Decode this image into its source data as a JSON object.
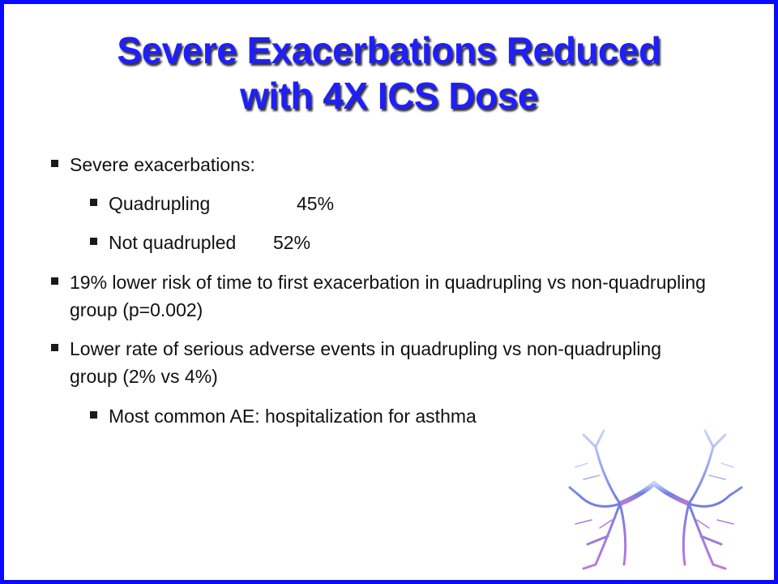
{
  "header": {
    "title_lines": [
      "Severe Exacerbations Reduced",
      "with 4X ICS Dose"
    ]
  },
  "bullets": [
    {
      "text": "Severe exacerbations:",
      "sub": [
        {
          "label": "Quadrupling",
          "value": "45%"
        },
        {
          "label": "Not quadrupled",
          "value": "52%"
        }
      ]
    },
    {
      "text": "19% lower risk of time to first exacerbation in quadrupling vs non-quadrupling group (p=0.002)"
    },
    {
      "text": "Lower rate of serious adverse events in quadrupling vs non-quadrupling group (2% vs 4%)",
      "sub": [
        {
          "label": "Most common AE: hospitalization for asthma"
        }
      ]
    }
  ]
}
